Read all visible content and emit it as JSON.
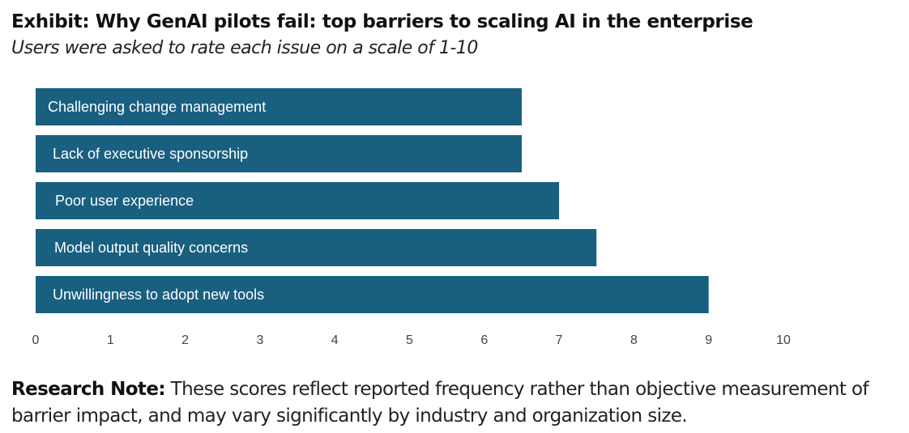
{
  "header": {
    "title": "Exhibit: Why GenAI pilots fail: top barriers to scaling AI in the enterprise",
    "subtitle": "Users were asked to rate each issue on a scale of 1-10"
  },
  "note": {
    "label": "Research Note:",
    "text": " These scores reflect reported frequency rather than objective measurement of barrier impact, and may vary significantly by industry and organization size."
  },
  "colors": {
    "bar": "#195f80",
    "bar_label": "#ffffff",
    "tick": "#444444"
  },
  "chart_data": {
    "type": "bar",
    "orientation": "horizontal",
    "title": "Exhibit: Why GenAI pilots fail: top barriers to scaling AI in the enterprise",
    "subtitle": "Users were asked to rate each issue on a scale of 1-10",
    "categories": [
      "Challenging change management",
      "Lack of executive sponsorship",
      "Poor user experience",
      "Model output quality concerns",
      "Unwillingness to adopt new tools"
    ],
    "values": [
      6.5,
      6.5,
      7.0,
      7.5,
      9.0
    ],
    "xlabel": "",
    "ylabel": "",
    "xlim": [
      0,
      10
    ],
    "xticks": [
      "0",
      "1",
      "2",
      "3",
      "4",
      "5",
      "6",
      "7",
      "8",
      "9",
      "10"
    ],
    "grid": false,
    "legend": "none",
    "labels_inside_bars": true
  }
}
